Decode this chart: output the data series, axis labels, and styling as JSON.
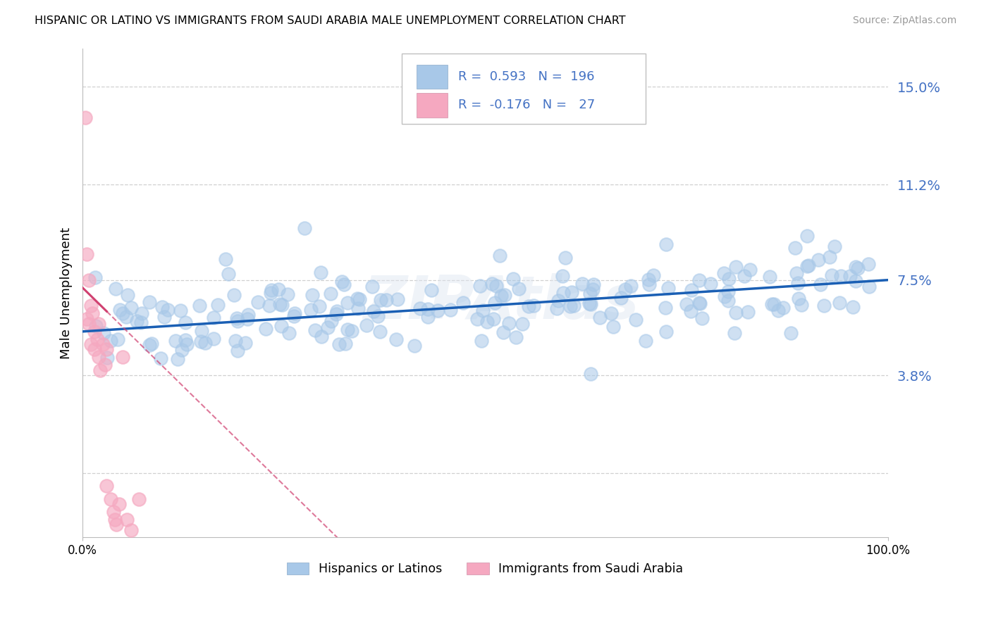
{
  "title": "HISPANIC OR LATINO VS IMMIGRANTS FROM SAUDI ARABIA MALE UNEMPLOYMENT CORRELATION CHART",
  "source": "Source: ZipAtlas.com",
  "ylabel": "Male Unemployment",
  "xlim": [
    0,
    100
  ],
  "ylim": [
    -2.5,
    16.5
  ],
  "yticks": [
    0.0,
    3.8,
    7.5,
    11.2,
    15.0
  ],
  "ytick_labels": [
    "",
    "3.8%",
    "7.5%",
    "11.2%",
    "15.0%"
  ],
  "xtick_labels": [
    "0.0%",
    "100.0%"
  ],
  "blue_R": 0.593,
  "blue_N": 196,
  "pink_R": -0.176,
  "pink_N": 27,
  "blue_color": "#a8c8e8",
  "pink_color": "#f5a8c0",
  "blue_line_color": "#1a5fb4",
  "pink_line_color": "#d04070",
  "legend_label_blue": "Hispanics or Latinos",
  "legend_label_pink": "Immigrants from Saudi Arabia",
  "watermark": "ZIPAtlas",
  "background_color": "#ffffff",
  "blue_line_start_y": 5.5,
  "blue_line_end_y": 7.5,
  "pink_line_start_y": 7.2,
  "pink_line_end_y": -2.0
}
